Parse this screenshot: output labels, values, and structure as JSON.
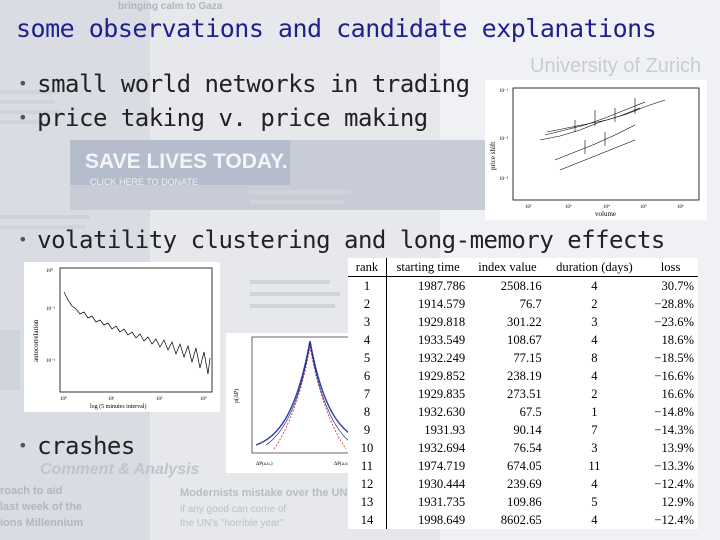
{
  "slide": {
    "title": "some observations and candidate explanations",
    "bullets": [
      "small world networks in trading",
      "price taking v. price making",
      "volatility clustering and long-memory effects",
      "crashes"
    ]
  },
  "background": {
    "banner": "SAVE LIVES TODAY.",
    "banner_sub": "CLICK HERE TO DONATE",
    "university": "University of Zurich",
    "section": "Comment & Analysis",
    "left_snippets": [
      "bringing calm to Gaza",
      "last week of the",
      "ions Millennium",
      "roach to aid"
    ],
    "bottom_snippet": "Modernists mistake over the UN",
    "bottom_snippet2": "if any good can come of",
    "bottom_snippet3": "the UN's \"horrible year\""
  },
  "fig_price_shift": {
    "ylabel": "price shift",
    "xlabel": "volume",
    "xticks": [
      "10²",
      "10³",
      "10⁴",
      "10⁵",
      "10⁶"
    ],
    "yticks": [
      "10⁻¹",
      "10⁻²",
      "10⁻³"
    ]
  },
  "fig_autocorrelation": {
    "ylabel": "autocorrelation",
    "xlabel": "log (5 minutes interval)",
    "yticks": [
      "10⁰",
      "10⁻¹",
      "10⁻²"
    ],
    "xticks": [
      "10⁰",
      "10¹",
      "10²",
      "10³"
    ]
  },
  "fig_distribution": {
    "ylabel": "p(ΔP)",
    "xlabels": [
      "ΔP(a.u.)",
      "ΔP(a.u.)"
    ]
  },
  "crash_table": {
    "headers": [
      "rank",
      "starting time",
      "index value",
      "duration (days)",
      "loss"
    ],
    "rows": [
      [
        "1",
        "1987.786",
        "2508.16",
        "4",
        "30.7%"
      ],
      [
        "2",
        "1914.579",
        "76.7",
        "2",
        "−28.8%"
      ],
      [
        "3",
        "1929.818",
        "301.22",
        "3",
        "−23.6%"
      ],
      [
        "4",
        "1933.549",
        "108.67",
        "4",
        "18.6%"
      ],
      [
        "5",
        "1932.249",
        "77.15",
        "8",
        "−18.5%"
      ],
      [
        "6",
        "1929.852",
        "238.19",
        "4",
        "−16.6%"
      ],
      [
        "7",
        "1929.835",
        "273.51",
        "2",
        "16.6%"
      ],
      [
        "8",
        "1932.630",
        "67.5",
        "1",
        "−14.8%"
      ],
      [
        "9",
        "1931.93",
        "90.14",
        "7",
        "−14.3%"
      ],
      [
        "10",
        "1932.694",
        "76.54",
        "3",
        "13.9%"
      ],
      [
        "11",
        "1974.719",
        "674.05",
        "11",
        "−13.3%"
      ],
      [
        "12",
        "1930.444",
        "239.69",
        "4",
        "−12.4%"
      ],
      [
        "13",
        "1931.735",
        "109.86",
        "5",
        "12.9%"
      ],
      [
        "14",
        "1998.649",
        "8602.65",
        "4",
        "−12.4%"
      ]
    ]
  }
}
